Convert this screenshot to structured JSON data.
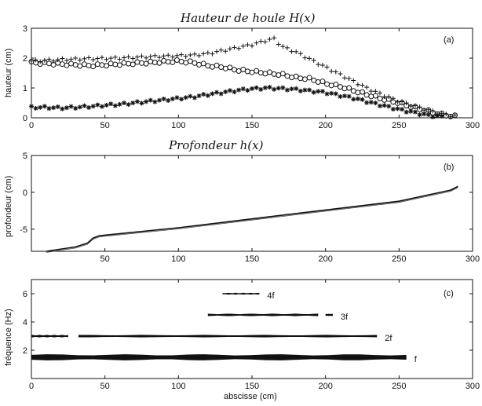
{
  "chart_data": [
    {
      "panel": "(a)",
      "type": "scatter",
      "handwritten_title": "Hauteur de houle H(x)",
      "xlabel": "",
      "ylabel": "hauteur (cm)",
      "xlim": [
        0,
        300
      ],
      "ylim": [
        0,
        3
      ],
      "xticks": [
        0,
        50,
        100,
        150,
        200,
        250,
        300
      ],
      "yticks": [
        0,
        1,
        2,
        3
      ],
      "series": [
        {
          "marker": "plus",
          "x": [
            0,
            20,
            40,
            60,
            80,
            100,
            110,
            120,
            130,
            140,
            150,
            160,
            165,
            170,
            180,
            190,
            200,
            210,
            220,
            230,
            240,
            250,
            260,
            270,
            280,
            290
          ],
          "y": [
            1.9,
            1.95,
            1.98,
            2.0,
            2.05,
            2.08,
            2.1,
            2.15,
            2.25,
            2.35,
            2.45,
            2.6,
            2.65,
            2.4,
            2.2,
            1.95,
            1.7,
            1.45,
            1.2,
            0.95,
            0.75,
            0.55,
            0.4,
            0.25,
            0.12,
            0.05
          ]
        },
        {
          "marker": "circle",
          "x": [
            0,
            20,
            40,
            60,
            80,
            100,
            110,
            120,
            130,
            140,
            150,
            160,
            170,
            180,
            190,
            200,
            210,
            220,
            230,
            240,
            250,
            260,
            270,
            280,
            290
          ],
          "y": [
            1.85,
            1.8,
            1.75,
            1.8,
            1.85,
            1.9,
            1.85,
            1.75,
            1.7,
            1.6,
            1.55,
            1.5,
            1.45,
            1.35,
            1.3,
            1.15,
            1.05,
            0.9,
            0.75,
            0.62,
            0.5,
            0.35,
            0.22,
            0.1,
            0.03
          ]
        },
        {
          "marker": "star",
          "x": [
            0,
            10,
            20,
            30,
            40,
            50,
            60,
            70,
            80,
            90,
            100,
            110,
            120,
            130,
            140,
            150,
            160,
            170,
            180,
            190,
            200,
            210,
            220,
            230,
            240,
            250,
            260,
            270,
            280
          ],
          "y": [
            0.35,
            0.35,
            0.33,
            0.35,
            0.38,
            0.42,
            0.45,
            0.5,
            0.55,
            0.6,
            0.65,
            0.7,
            0.78,
            0.85,
            0.92,
            0.97,
            1.0,
            0.98,
            0.95,
            0.9,
            0.85,
            0.75,
            0.65,
            0.52,
            0.4,
            0.28,
            0.18,
            0.08,
            0.03
          ]
        }
      ]
    },
    {
      "panel": "(b)",
      "type": "line",
      "handwritten_title": "Profondeur h(x)",
      "xlabel": "",
      "ylabel": "profondeur (cm)",
      "xlim": [
        0,
        300
      ],
      "ylim": [
        -8,
        5
      ],
      "xticks": [
        50,
        100,
        150,
        200,
        250,
        300
      ],
      "yticks": [
        -5,
        0,
        5
      ],
      "series": [
        {
          "x": [
            10,
            30,
            38,
            42,
            46,
            50,
            100,
            150,
            200,
            250,
            285,
            290
          ],
          "y": [
            -8.0,
            -7.4,
            -6.9,
            -6.2,
            -5.9,
            -5.8,
            -4.8,
            -3.6,
            -2.4,
            -1.2,
            0.3,
            0.8
          ]
        }
      ]
    },
    {
      "panel": "(c)",
      "type": "band",
      "xlabel": "abscisse (cm)",
      "ylabel": "fréquence (Hz)",
      "xlim": [
        0,
        300
      ],
      "ylim": [
        0,
        7
      ],
      "xticks": [
        0,
        50,
        100,
        150,
        200,
        250,
        300
      ],
      "yticks": [
        2,
        4,
        6
      ],
      "bands": [
        {
          "label": "f",
          "freq": 1.5,
          "segments": [
            [
              0,
              255
            ]
          ],
          "thickness": 0.35
        },
        {
          "label": "2f",
          "freq": 3.0,
          "segments": [
            [
              0,
              25
            ],
            [
              32,
              235
            ]
          ],
          "thickness": 0.14
        },
        {
          "label": "3f",
          "freq": 4.5,
          "segments": [
            [
              120,
              195
            ],
            [
              200,
              205
            ]
          ],
          "thickness": 0.14
        },
        {
          "label": "4f",
          "freq": 6.0,
          "segments": [
            [
              130,
              155
            ]
          ],
          "thickness": 0.1
        }
      ]
    }
  ]
}
